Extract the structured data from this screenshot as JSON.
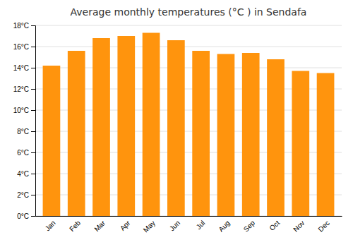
{
  "chart_data": {
    "type": "bar",
    "title": "Average monthly temperatures (°C ) in Sendafa",
    "categories": [
      "Jan",
      "Feb",
      "Mar",
      "Apr",
      "May",
      "Jun",
      "Jul",
      "Aug",
      "Sep",
      "Oct",
      "Nov",
      "Dec"
    ],
    "values": [
      14.2,
      15.6,
      16.8,
      17.0,
      17.3,
      16.6,
      15.6,
      15.3,
      15.4,
      14.8,
      13.7,
      13.5
    ],
    "color": "#ff940d",
    "ylim": [
      0,
      18
    ],
    "yticks": [
      {
        "value": 0,
        "label": "0°C"
      },
      {
        "value": 2,
        "label": "2°C"
      },
      {
        "value": 4,
        "label": "4°C"
      },
      {
        "value": 6,
        "label": "6°C"
      },
      {
        "value": 8,
        "label": "8°C"
      },
      {
        "value": 10,
        "label": "10°C"
      },
      {
        "value": 12,
        "label": "12°C"
      },
      {
        "value": 14,
        "label": "14°C"
      },
      {
        "value": 16,
        "label": "16°C"
      },
      {
        "value": 18,
        "label": "18°C"
      }
    ],
    "grid": true
  }
}
